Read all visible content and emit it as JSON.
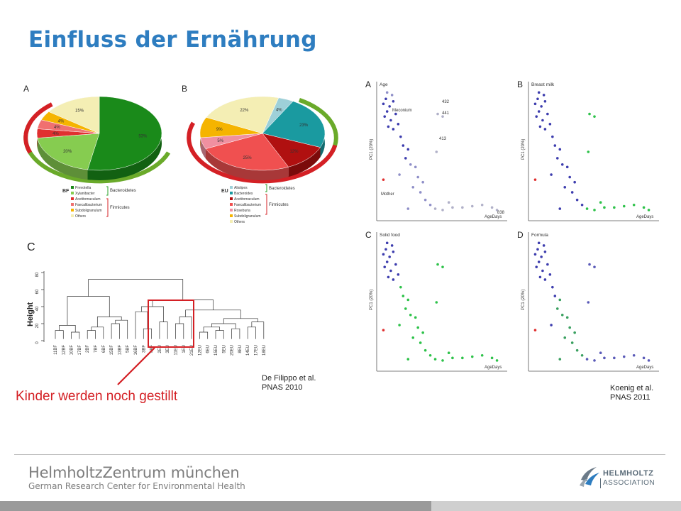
{
  "slide": {
    "title": "Einfluss der Ernährung",
    "callout": "Kinder werden noch gestillt",
    "caption_left": [
      "De Filippo et al.",
      "PNAS 2010"
    ],
    "caption_right": [
      "Koenig et al.",
      "PNAS 2011"
    ]
  },
  "pie_a": {
    "panel": "A",
    "group": "BF",
    "slices": [
      {
        "label": "Prevotella",
        "value": 53,
        "text": "53%",
        "color": "#1a8a1a"
      },
      {
        "label": "Xylanibacter",
        "value": 20,
        "text": "20%",
        "color": "#86cc50"
      },
      {
        "label": "Acetitomaculum",
        "value": 4,
        "text": "4%",
        "color": "#e03030"
      },
      {
        "label": "Faecalibacterium",
        "value": 4,
        "text": "4%",
        "color": "#f07070"
      },
      {
        "label": "Subdoligranulum",
        "value": 4,
        "text": "4%",
        "color": "#f5b400"
      },
      {
        "label": "Others",
        "value": 15,
        "text": "15%",
        "color": "#f4eeb4"
      }
    ],
    "phyla": [
      "Bacteroidetes",
      "Firmicutes"
    ]
  },
  "pie_b": {
    "panel": "B",
    "group": "EU",
    "slices": [
      {
        "label": "Alistipes",
        "value": 4,
        "text": "4%",
        "color": "#9ed0d8"
      },
      {
        "label": "Bacteroides",
        "value": 23,
        "text": "23%",
        "color": "#1a9aa0"
      },
      {
        "label": "Acetitomaculum",
        "value": 12,
        "text": "12%",
        "color": "#b01010"
      },
      {
        "label": "Faecalibacterium",
        "value": 25,
        "text": "25%",
        "color": "#f05050"
      },
      {
        "label": "Roseburia",
        "value": 5,
        "text": "5%",
        "color": "#f090a0"
      },
      {
        "label": "Subdoligranulum",
        "value": 9,
        "text": "9%",
        "color": "#f5b400"
      },
      {
        "label": "Others",
        "value": 22,
        "text": "22%",
        "color": "#f4eeb4"
      }
    ],
    "phyla": [
      "Bacteroidetes",
      "Firmicutes"
    ]
  },
  "dendro": {
    "panel": "C",
    "ylabel": "Height",
    "yticks": [
      "80",
      "60",
      "40",
      "20",
      "0"
    ],
    "leaves": [
      "11BF",
      "12BF",
      "10BF",
      "17BF",
      "2BF",
      "7BF",
      "6BF",
      "15BF",
      "13BF",
      "5BF",
      "16BF",
      "3BF",
      "4BF",
      "2EU",
      "3EU",
      "11EU",
      "1EU",
      "21EU",
      "12EU",
      "6EU",
      "15EU",
      "5EU",
      "20EU",
      "8EU",
      "14EU",
      "17EU",
      "18EU"
    ]
  },
  "scatter": {
    "xlabel": "AgeDays",
    "ylabel": "PC1 (20%)",
    "panels": [
      {
        "letter": "A",
        "title": "Age",
        "annotations": [
          "432",
          "441",
          "413",
          "838",
          "Meconium",
          "Mother"
        ]
      },
      {
        "letter": "B",
        "title": "Breast milk"
      },
      {
        "letter": "C",
        "title": "Solid food"
      },
      {
        "letter": "D",
        "title": "Formula"
      }
    ]
  },
  "footer": {
    "org_name": "HelmholtzZentrum münchen",
    "org_sub": "German Research Center for Environmental Health",
    "assoc_line1": "HELMHOLTZ",
    "assoc_line2": "ASSOCIATION"
  },
  "colors": {
    "title": "#2e7dc0",
    "callout": "#d42025",
    "highlight_box": "#d42025",
    "pre_weaning": "#3d3dae",
    "post_weaning": "#2ec24a",
    "mother": "#e03030"
  }
}
